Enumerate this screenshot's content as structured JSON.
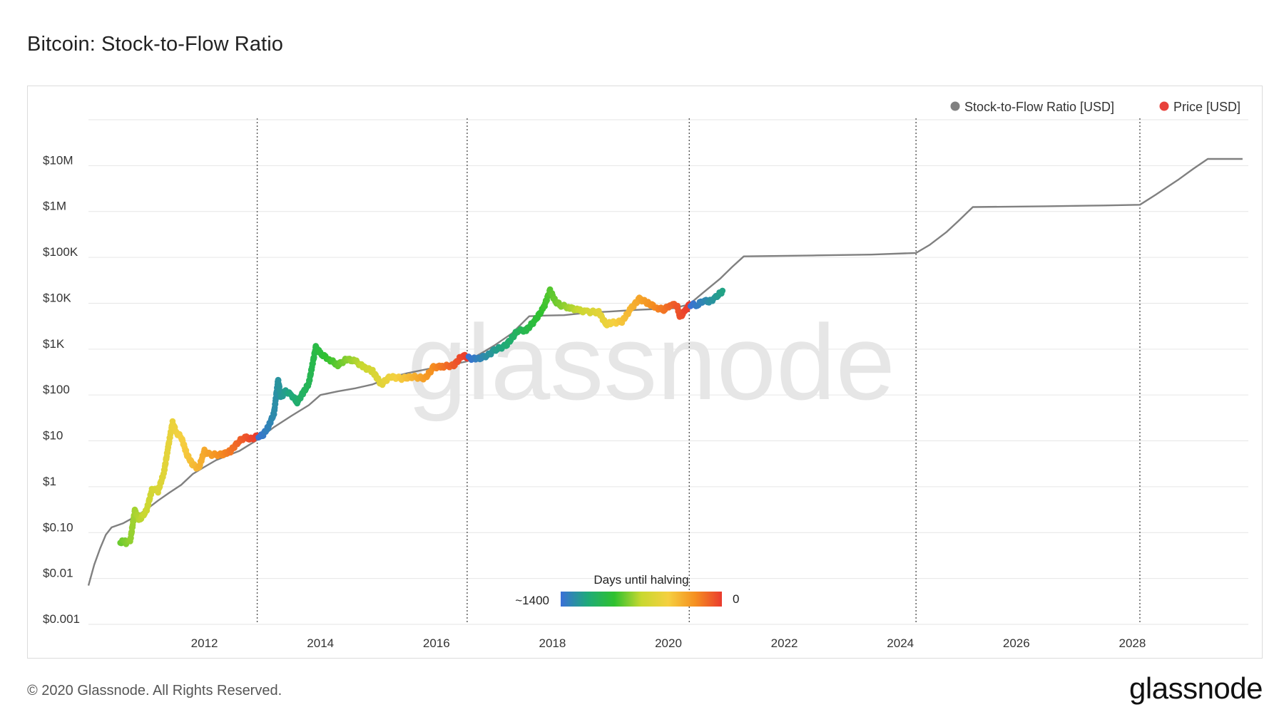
{
  "page": {
    "title": "Bitcoin: Stock-to-Flow Ratio",
    "copyright": "© 2020 Glassnode. All Rights Reserved.",
    "logo": "glassnode",
    "watermark": "glassnode"
  },
  "chart_data": {
    "type": "line",
    "title": "Bitcoin: Stock-to-Flow Ratio",
    "xlabel": "",
    "ylabel": "",
    "y_scale": "log",
    "grid": "horizontal",
    "legend_position": "top-right",
    "xlim": [
      2010.0,
      2030.0
    ],
    "ylim": [
      0.001,
      100000000
    ],
    "x_ticks": [
      2012,
      2014,
      2016,
      2018,
      2020,
      2022,
      2024,
      2026,
      2028
    ],
    "x_tick_labels": [
      "2012",
      "2014",
      "2016",
      "2018",
      "2020",
      "2022",
      "2024",
      "2026",
      "2028"
    ],
    "y_ticks": [
      0.001,
      0.01,
      0.1,
      1,
      10,
      100,
      1000,
      10000,
      100000,
      1000000,
      10000000
    ],
    "y_tick_labels": [
      "$0.001",
      "$0.01",
      "$0.10",
      "$1",
      "$10",
      "$100",
      "$1K",
      "$10K",
      "$100K",
      "$1M",
      "$10M"
    ],
    "halving_lines": [
      2012.91,
      2016.53,
      2020.36,
      2024.27,
      2028.13
    ],
    "colors": {
      "s2f": "#808080",
      "price_legend": "#e8413b",
      "grid": "#e6e6e6",
      "halving": "#555555"
    },
    "colorbar": {
      "title": "Days until halving",
      "min_label": "~1400",
      "max_label": "0",
      "stops": [
        "#3a6fd8",
        "#1faa7a",
        "#2fc12f",
        "#c8d830",
        "#f5d040",
        "#f59020",
        "#ea3b2e"
      ]
    },
    "series": [
      {
        "name": "Stock-to-Flow Ratio [USD]",
        "color": "#808080",
        "points": [
          [
            2010.0,
            0.007
          ],
          [
            2010.1,
            0.02
          ],
          [
            2010.2,
            0.045
          ],
          [
            2010.3,
            0.09
          ],
          [
            2010.4,
            0.13
          ],
          [
            2010.6,
            0.16
          ],
          [
            2010.8,
            0.22
          ],
          [
            2011.0,
            0.32
          ],
          [
            2011.2,
            0.5
          ],
          [
            2011.4,
            0.75
          ],
          [
            2011.6,
            1.1
          ],
          [
            2011.8,
            1.9
          ],
          [
            2012.0,
            2.7
          ],
          [
            2012.2,
            3.8
          ],
          [
            2012.4,
            4.8
          ],
          [
            2012.6,
            6.0
          ],
          [
            2012.91,
            10.5
          ],
          [
            2013.2,
            20
          ],
          [
            2013.5,
            35
          ],
          [
            2013.8,
            60
          ],
          [
            2014.0,
            100
          ],
          [
            2014.3,
            120
          ],
          [
            2014.6,
            140
          ],
          [
            2014.9,
            170
          ],
          [
            2015.2,
            240
          ],
          [
            2015.5,
            300
          ],
          [
            2015.9,
            380
          ],
          [
            2016.2,
            440
          ],
          [
            2016.53,
            540
          ],
          [
            2016.8,
            850
          ],
          [
            2017.0,
            1200
          ],
          [
            2017.3,
            2200
          ],
          [
            2017.6,
            5200
          ],
          [
            2017.9,
            5400
          ],
          [
            2018.2,
            5500
          ],
          [
            2018.6,
            6200
          ],
          [
            2019.0,
            6600
          ],
          [
            2019.4,
            7100
          ],
          [
            2019.8,
            7500
          ],
          [
            2020.1,
            7800
          ],
          [
            2020.36,
            9500
          ],
          [
            2020.6,
            17000
          ],
          [
            2020.9,
            35000
          ],
          [
            2021.1,
            62000
          ],
          [
            2021.3,
            105000
          ],
          [
            2022.5,
            110000
          ],
          [
            2023.5,
            115000
          ],
          [
            2024.27,
            125000
          ],
          [
            2024.5,
            185000
          ],
          [
            2024.8,
            360000
          ],
          [
            2025.0,
            620000
          ],
          [
            2025.25,
            1250000
          ],
          [
            2026.5,
            1300000
          ],
          [
            2027.5,
            1350000
          ],
          [
            2028.13,
            1400000
          ],
          [
            2028.4,
            2300000
          ],
          [
            2028.8,
            5000000
          ],
          [
            2029.05,
            8500000
          ],
          [
            2029.3,
            14000000
          ],
          [
            2029.9,
            14000000
          ]
        ]
      },
      {
        "name": "Price [USD]",
        "color_legend": "#e8413b",
        "color_mode": "days_until_halving",
        "points": [
          [
            2010.55,
            0.06
          ],
          [
            2010.6,
            0.07
          ],
          [
            2010.65,
            0.06
          ],
          [
            2010.72,
            0.065
          ],
          [
            2010.8,
            0.3
          ],
          [
            2010.88,
            0.19
          ],
          [
            2011.0,
            0.3
          ],
          [
            2011.1,
            0.9
          ],
          [
            2011.2,
            0.8
          ],
          [
            2011.3,
            2.0
          ],
          [
            2011.38,
            8.0
          ],
          [
            2011.45,
            25.0
          ],
          [
            2011.52,
            15.0
          ],
          [
            2011.6,
            12.0
          ],
          [
            2011.7,
            5.0
          ],
          [
            2011.8,
            3.0
          ],
          [
            2011.9,
            2.5
          ],
          [
            2012.0,
            6.0
          ],
          [
            2012.1,
            5.0
          ],
          [
            2012.3,
            5.0
          ],
          [
            2012.45,
            6.0
          ],
          [
            2012.6,
            10.0
          ],
          [
            2012.7,
            12.0
          ],
          [
            2012.8,
            11.0
          ],
          [
            2012.91,
            12.5
          ],
          [
            2013.0,
            13.0
          ],
          [
            2013.1,
            20.0
          ],
          [
            2013.2,
            40.0
          ],
          [
            2013.27,
            210.0
          ],
          [
            2013.32,
            90.0
          ],
          [
            2013.4,
            120.0
          ],
          [
            2013.5,
            100.0
          ],
          [
            2013.6,
            70.0
          ],
          [
            2013.7,
            110.0
          ],
          [
            2013.8,
            180.0
          ],
          [
            2013.92,
            1100.0
          ],
          [
            2014.0,
            800.0
          ],
          [
            2014.15,
            600.0
          ],
          [
            2014.3,
            450.0
          ],
          [
            2014.45,
            600.0
          ],
          [
            2014.6,
            550.0
          ],
          [
            2014.75,
            400.0
          ],
          [
            2014.9,
            330.0
          ],
          [
            2015.05,
            170.0
          ],
          [
            2015.2,
            250.0
          ],
          [
            2015.4,
            230.0
          ],
          [
            2015.6,
            250.0
          ],
          [
            2015.8,
            230.0
          ],
          [
            2015.95,
            400.0
          ],
          [
            2016.1,
            420.0
          ],
          [
            2016.3,
            440.0
          ],
          [
            2016.45,
            750.0
          ],
          [
            2016.53,
            650.0
          ],
          [
            2016.7,
            600.0
          ],
          [
            2016.9,
            750.0
          ],
          [
            2017.0,
            950.0
          ],
          [
            2017.2,
            1200.0
          ],
          [
            2017.4,
            2500.0
          ],
          [
            2017.55,
            2600.0
          ],
          [
            2017.7,
            4200.0
          ],
          [
            2017.85,
            8000.0
          ],
          [
            2017.96,
            19000.0
          ],
          [
            2018.05,
            11000.0
          ],
          [
            2018.15,
            9000.0
          ],
          [
            2018.3,
            8000.0
          ],
          [
            2018.45,
            7000.0
          ],
          [
            2018.6,
            6500.0
          ],
          [
            2018.8,
            6400.0
          ],
          [
            2018.92,
            3500.0
          ],
          [
            2019.0,
            3700.0
          ],
          [
            2019.2,
            4000.0
          ],
          [
            2019.35,
            7500.0
          ],
          [
            2019.5,
            12500.0
          ],
          [
            2019.65,
            10000.0
          ],
          [
            2019.8,
            8000.0
          ],
          [
            2019.92,
            7200.0
          ],
          [
            2020.05,
            9500.0
          ],
          [
            2020.15,
            8800.0
          ],
          [
            2020.2,
            5000.0
          ],
          [
            2020.3,
            7000.0
          ],
          [
            2020.36,
            9300.0
          ],
          [
            2020.5,
            9200.0
          ],
          [
            2020.6,
            11500.0
          ],
          [
            2020.7,
            10700.0
          ],
          [
            2020.8,
            13000.0
          ],
          [
            2020.88,
            16000.0
          ],
          [
            2020.95,
            19000.0
          ]
        ]
      }
    ]
  }
}
